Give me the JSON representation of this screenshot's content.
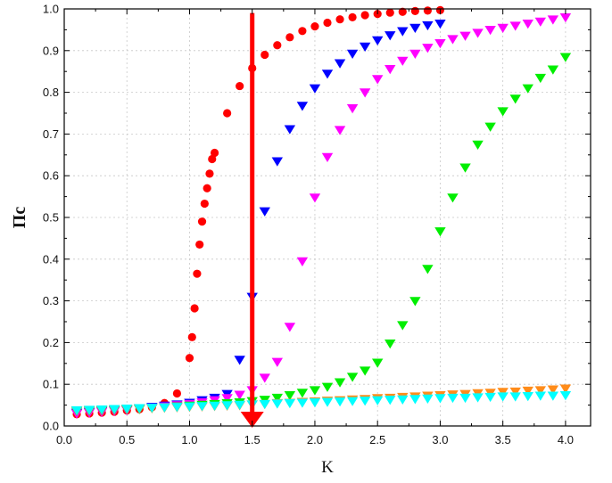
{
  "chart_data": {
    "type": "scatter",
    "xlabel": "K",
    "ylabel": "Πc",
    "xlim": [
      0,
      4.2
    ],
    "ylim": [
      0,
      1.0
    ],
    "xticks": [
      "0.0",
      "0.5",
      "1.0",
      "1.5",
      "2.0",
      "2.5",
      "3.0",
      "3.5",
      "4.0"
    ],
    "yticks": [
      "0.0",
      "0.1",
      "0.2",
      "0.3",
      "0.4",
      "0.5",
      "0.6",
      "0.7",
      "0.8",
      "0.9",
      "1.0"
    ],
    "grid": true,
    "legend": "none",
    "series": [
      {
        "color": "#ff0000",
        "marker": "circle",
        "points": [
          [
            0.1,
            0.028
          ],
          [
            0.2,
            0.03
          ],
          [
            0.3,
            0.032
          ],
          [
            0.4,
            0.034
          ],
          [
            0.5,
            0.037
          ],
          [
            0.6,
            0.04
          ],
          [
            0.7,
            0.045
          ],
          [
            0.8,
            0.055
          ],
          [
            0.9,
            0.078
          ],
          [
            1.0,
            0.163
          ],
          [
            1.02,
            0.213
          ],
          [
            1.04,
            0.282
          ],
          [
            1.06,
            0.365
          ],
          [
            1.08,
            0.435
          ],
          [
            1.1,
            0.49
          ],
          [
            1.12,
            0.533
          ],
          [
            1.14,
            0.57
          ],
          [
            1.16,
            0.605
          ],
          [
            1.18,
            0.64
          ],
          [
            1.2,
            0.655
          ],
          [
            1.3,
            0.75
          ],
          [
            1.4,
            0.815
          ],
          [
            1.5,
            0.858
          ],
          [
            1.6,
            0.89
          ],
          [
            1.7,
            0.913
          ],
          [
            1.8,
            0.932
          ],
          [
            1.9,
            0.947
          ],
          [
            2.0,
            0.958
          ],
          [
            2.1,
            0.967
          ],
          [
            2.2,
            0.975
          ],
          [
            2.3,
            0.98
          ],
          [
            2.4,
            0.985
          ],
          [
            2.5,
            0.988
          ],
          [
            2.6,
            0.991
          ],
          [
            2.7,
            0.993
          ],
          [
            2.8,
            0.995
          ],
          [
            2.9,
            0.996
          ],
          [
            3.0,
            0.997
          ]
        ]
      },
      {
        "color": "#0000ff",
        "marker": "triangle-down",
        "points": [
          [
            0.1,
            0.032
          ],
          [
            0.2,
            0.034
          ],
          [
            0.3,
            0.036
          ],
          [
            0.4,
            0.038
          ],
          [
            0.5,
            0.04
          ],
          [
            0.6,
            0.043
          ],
          [
            0.7,
            0.046
          ],
          [
            0.8,
            0.049
          ],
          [
            0.9,
            0.052
          ],
          [
            1.0,
            0.056
          ],
          [
            1.1,
            0.062
          ],
          [
            1.2,
            0.068
          ],
          [
            1.3,
            0.077
          ],
          [
            1.4,
            0.159
          ],
          [
            1.5,
            0.31
          ],
          [
            1.6,
            0.515
          ],
          [
            1.7,
            0.635
          ],
          [
            1.8,
            0.712
          ],
          [
            1.9,
            0.768
          ],
          [
            2.0,
            0.81
          ],
          [
            2.1,
            0.845
          ],
          [
            2.2,
            0.87
          ],
          [
            2.3,
            0.893
          ],
          [
            2.4,
            0.91
          ],
          [
            2.5,
            0.925
          ],
          [
            2.6,
            0.937
          ],
          [
            2.7,
            0.947
          ],
          [
            2.8,
            0.955
          ],
          [
            2.9,
            0.961
          ],
          [
            3.0,
            0.965
          ]
        ]
      },
      {
        "color": "#ff00ff",
        "marker": "triangle-down",
        "points": [
          [
            0.1,
            0.03
          ],
          [
            0.2,
            0.032
          ],
          [
            0.3,
            0.034
          ],
          [
            0.4,
            0.036
          ],
          [
            0.5,
            0.038
          ],
          [
            0.6,
            0.041
          ],
          [
            0.7,
            0.044
          ],
          [
            0.8,
            0.047
          ],
          [
            0.9,
            0.05
          ],
          [
            1.0,
            0.053
          ],
          [
            1.1,
            0.057
          ],
          [
            1.2,
            0.062
          ],
          [
            1.3,
            0.067
          ],
          [
            1.4,
            0.075
          ],
          [
            1.5,
            0.086
          ],
          [
            1.6,
            0.116
          ],
          [
            1.7,
            0.154
          ],
          [
            1.8,
            0.238
          ],
          [
            1.9,
            0.395
          ],
          [
            2.0,
            0.548
          ],
          [
            2.1,
            0.645
          ],
          [
            2.2,
            0.71
          ],
          [
            2.3,
            0.762
          ],
          [
            2.4,
            0.8
          ],
          [
            2.5,
            0.832
          ],
          [
            2.6,
            0.856
          ],
          [
            2.7,
            0.876
          ],
          [
            2.8,
            0.893
          ],
          [
            2.9,
            0.907
          ],
          [
            3.0,
            0.918
          ],
          [
            3.1,
            0.928
          ],
          [
            3.2,
            0.936
          ],
          [
            3.3,
            0.943
          ],
          [
            3.4,
            0.95
          ],
          [
            3.5,
            0.955
          ],
          [
            3.6,
            0.96
          ],
          [
            3.7,
            0.965
          ],
          [
            3.8,
            0.97
          ],
          [
            3.9,
            0.975
          ],
          [
            4.0,
            0.98
          ]
        ]
      },
      {
        "color": "#00ee00",
        "marker": "triangle-down",
        "points": [
          [
            0.1,
            0.036
          ],
          [
            0.2,
            0.037
          ],
          [
            0.3,
            0.038
          ],
          [
            0.4,
            0.039
          ],
          [
            0.5,
            0.04
          ],
          [
            0.6,
            0.041
          ],
          [
            0.7,
            0.043
          ],
          [
            0.8,
            0.045
          ],
          [
            0.9,
            0.047
          ],
          [
            1.0,
            0.049
          ],
          [
            1.1,
            0.051
          ],
          [
            1.2,
            0.053
          ],
          [
            1.3,
            0.055
          ],
          [
            1.4,
            0.057
          ],
          [
            1.5,
            0.06
          ],
          [
            1.6,
            0.063
          ],
          [
            1.7,
            0.068
          ],
          [
            1.8,
            0.074
          ],
          [
            1.9,
            0.08
          ],
          [
            2.0,
            0.086
          ],
          [
            2.1,
            0.094
          ],
          [
            2.2,
            0.105
          ],
          [
            2.3,
            0.118
          ],
          [
            2.4,
            0.133
          ],
          [
            2.5,
            0.152
          ],
          [
            2.6,
            0.198
          ],
          [
            2.7,
            0.242
          ],
          [
            2.8,
            0.3
          ],
          [
            2.9,
            0.377
          ],
          [
            3.0,
            0.467
          ],
          [
            3.1,
            0.548
          ],
          [
            3.2,
            0.62
          ],
          [
            3.3,
            0.675
          ],
          [
            3.4,
            0.718
          ],
          [
            3.5,
            0.755
          ],
          [
            3.6,
            0.785
          ],
          [
            3.7,
            0.81
          ],
          [
            3.8,
            0.835
          ],
          [
            3.9,
            0.855
          ],
          [
            4.0,
            0.885
          ]
        ]
      },
      {
        "color": "#ff8c1a",
        "marker": "triangle-down",
        "points": [
          [
            0.1,
            0.037
          ],
          [
            0.2,
            0.038
          ],
          [
            0.3,
            0.039
          ],
          [
            0.4,
            0.04
          ],
          [
            0.5,
            0.041
          ],
          [
            0.6,
            0.042
          ],
          [
            0.7,
            0.043
          ],
          [
            0.8,
            0.044
          ],
          [
            0.9,
            0.045
          ],
          [
            1.0,
            0.046
          ],
          [
            1.1,
            0.047
          ],
          [
            1.2,
            0.048
          ],
          [
            1.3,
            0.049
          ],
          [
            1.4,
            0.05
          ],
          [
            1.5,
            0.052
          ],
          [
            1.6,
            0.053
          ],
          [
            1.7,
            0.055
          ],
          [
            1.8,
            0.056
          ],
          [
            1.9,
            0.058
          ],
          [
            2.0,
            0.059
          ],
          [
            2.1,
            0.061
          ],
          [
            2.2,
            0.062
          ],
          [
            2.3,
            0.064
          ],
          [
            2.4,
            0.065
          ],
          [
            2.5,
            0.067
          ],
          [
            2.6,
            0.068
          ],
          [
            2.7,
            0.07
          ],
          [
            2.8,
            0.071
          ],
          [
            2.9,
            0.073
          ],
          [
            3.0,
            0.074
          ],
          [
            3.1,
            0.076
          ],
          [
            3.2,
            0.077
          ],
          [
            3.3,
            0.079
          ],
          [
            3.4,
            0.08
          ],
          [
            3.5,
            0.082
          ],
          [
            3.6,
            0.083
          ],
          [
            3.7,
            0.085
          ],
          [
            3.8,
            0.086
          ],
          [
            3.9,
            0.088
          ],
          [
            4.0,
            0.09
          ]
        ]
      },
      {
        "color": "#00ffff",
        "marker": "triangle-down",
        "points": [
          [
            0.1,
            0.038
          ],
          [
            0.2,
            0.039
          ],
          [
            0.3,
            0.04
          ],
          [
            0.4,
            0.041
          ],
          [
            0.5,
            0.042
          ],
          [
            0.6,
            0.043
          ],
          [
            0.7,
            0.044
          ],
          [
            0.8,
            0.045
          ],
          [
            0.9,
            0.046
          ],
          [
            1.0,
            0.047
          ],
          [
            1.1,
            0.048
          ],
          [
            1.2,
            0.049
          ],
          [
            1.3,
            0.05
          ],
          [
            1.4,
            0.051
          ],
          [
            1.5,
            0.052
          ],
          [
            1.6,
            0.053
          ],
          [
            1.7,
            0.054
          ],
          [
            1.8,
            0.055
          ],
          [
            1.9,
            0.056
          ],
          [
            2.0,
            0.057
          ],
          [
            2.1,
            0.058
          ],
          [
            2.2,
            0.059
          ],
          [
            2.3,
            0.06
          ],
          [
            2.4,
            0.061
          ],
          [
            2.5,
            0.062
          ],
          [
            2.6,
            0.063
          ],
          [
            2.7,
            0.064
          ],
          [
            2.8,
            0.065
          ],
          [
            2.9,
            0.066
          ],
          [
            3.0,
            0.067
          ],
          [
            3.1,
            0.068
          ],
          [
            3.2,
            0.068
          ],
          [
            3.3,
            0.069
          ],
          [
            3.4,
            0.07
          ],
          [
            3.5,
            0.071
          ],
          [
            3.6,
            0.071
          ],
          [
            3.7,
            0.072
          ],
          [
            3.8,
            0.073
          ],
          [
            3.9,
            0.073
          ],
          [
            4.0,
            0.074
          ]
        ]
      }
    ],
    "annotations": [
      {
        "type": "arrow",
        "color": "#ff0000",
        "x": 1.5,
        "from_y": 0.99,
        "to_y": 0.0
      }
    ]
  }
}
